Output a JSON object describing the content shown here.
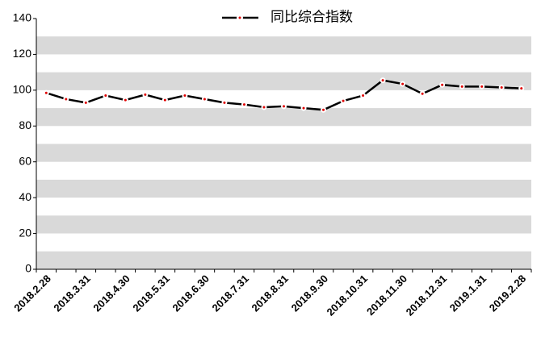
{
  "chart_data": {
    "type": "line",
    "categories": [
      "2018.2.28",
      null,
      "2018.3.31",
      null,
      "2018.4.30",
      null,
      "2018.5.31",
      null,
      "2018.6.30",
      null,
      "2018.7.31",
      null,
      "2018.8.31",
      null,
      "2018.9.30",
      null,
      "2018.10.31",
      null,
      "2018.11.30",
      null,
      "2018.12.31",
      null,
      "2019.1.31",
      null,
      "2019.2.28"
    ],
    "series": [
      {
        "name": "同比综合指数",
        "color": "#000000",
        "values": [
          98.5,
          95,
          93,
          97,
          94.5,
          97.5,
          94.5,
          97,
          95,
          93,
          92,
          90.5,
          91,
          90,
          89,
          94,
          97,
          105.5,
          103.5,
          98,
          103,
          102,
          102,
          101.5,
          101
        ]
      }
    ],
    "ylim": [
      0,
      140
    ],
    "yticks": [
      0,
      20,
      40,
      60,
      80,
      100,
      120,
      140
    ],
    "grid": true,
    "legend": "top"
  }
}
